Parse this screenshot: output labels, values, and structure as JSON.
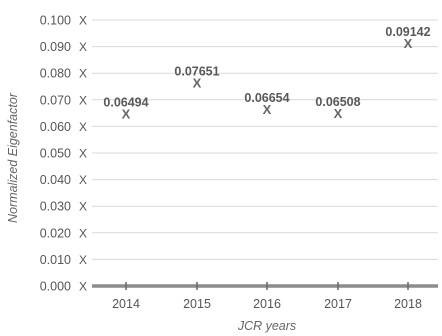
{
  "chart_data": {
    "type": "scatter",
    "categories": [
      "2014",
      "2015",
      "2016",
      "2017",
      "2018"
    ],
    "values": [
      0.06494,
      0.07651,
      0.06654,
      0.06508,
      0.09142
    ],
    "data_labels": [
      "0.06494",
      "0.07651",
      "0.06654",
      "0.06508",
      "0.09142"
    ],
    "marker_symbol": "X",
    "xlabel": "JCR years",
    "ylabel": "Normalized Eigenfactor",
    "ylim": [
      0,
      0.1
    ],
    "yticks": [
      "0.000",
      "0.010",
      "0.020",
      "0.030",
      "0.040",
      "0.050",
      "0.060",
      "0.070",
      "0.080",
      "0.090",
      "0.100"
    ],
    "grid": true,
    "colors": {
      "grid": "#d9d9d9",
      "baseline": "#8c8c8c",
      "marker": "#666666",
      "text": "#555555"
    }
  }
}
